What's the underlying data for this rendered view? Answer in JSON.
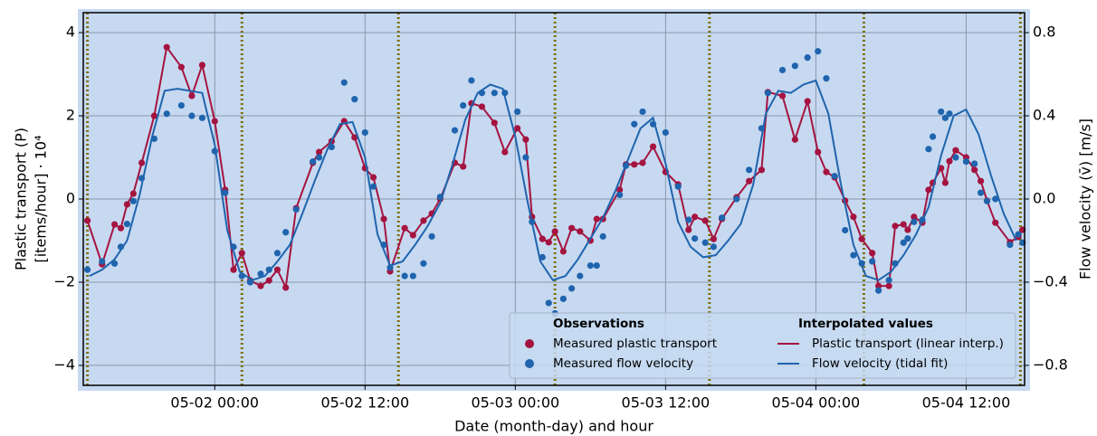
{
  "chart_data": {
    "type": "line",
    "x_label": "Date (month-day) and hour",
    "y_label": [
      "Plastic transport (P)",
      "[items/hour] · 10⁴"
    ],
    "y2_label": "Flow velocity (v̄) [m/s]",
    "xlim": [
      "05-01 13:30",
      "05-04 16:40"
    ],
    "xticks": [
      "05-02 00:00",
      "05-02 12:00",
      "05-03 00:00",
      "05-03 12:00",
      "05-04 00:00",
      "05-04 12:00"
    ],
    "ylim": [
      -4.48,
      4.48
    ],
    "yticks": [
      {
        "value": -4,
        "label": "−4"
      },
      {
        "value": -2,
        "label": "−2"
      },
      0,
      2,
      4
    ],
    "y2lim": [
      -0.896,
      0.896
    ],
    "y2ticks": [
      {
        "value": -0.8,
        "label": "−0.8"
      },
      {
        "value": -0.4,
        "label": "−0.4"
      },
      {
        "value": 0,
        "label": "0.0"
      },
      0.4,
      0.8
    ],
    "grid": true,
    "legend": "lower right",
    "legend_titles": [
      "Observations",
      "Interpolated values"
    ],
    "vlines": {
      "color": "#7f6e00",
      "x": [
        "05-01 13:50",
        "05-02 02:10",
        "05-02 14:40",
        "05-03 03:10",
        "05-03 15:30",
        "05-04 03:50",
        "05-04 16:20"
      ]
    },
    "x": [
      "05-01 13:50",
      "05-01 15:00",
      "05-01 16:00",
      "05-01 16:30",
      "05-01 17:00",
      "05-01 17:30",
      "05-01 18:10",
      "05-01 19:10",
      "05-01 20:10",
      "05-01 21:20",
      "05-01 22:10",
      "05-01 23:00",
      "05-02 00:00",
      "05-02 00:50",
      "05-02 01:30",
      "05-02 02:10",
      "05-02 02:50",
      "05-02 03:40",
      "05-02 04:20",
      "05-02 05:00",
      "05-02 05:40",
      "05-02 06:30",
      "05-02 07:50",
      "05-02 08:20",
      "05-02 09:20",
      "05-02 10:20",
      "05-02 11:10",
      "05-02 12:00",
      "05-02 12:40",
      "05-02 13:30",
      "05-02 14:00",
      "05-02 15:10",
      "05-02 15:50",
      "05-02 16:40",
      "05-02 17:20",
      "05-02 18:00",
      "05-02 19:10",
      "05-02 19:50",
      "05-02 20:30",
      "05-02 21:20",
      "05-02 22:20",
      "05-02 23:10",
      "05-03 00:10",
      "05-03 00:50",
      "05-03 01:20",
      "05-03 02:10",
      "05-03 02:40",
      "05-03 03:10",
      "05-03 03:50",
      "05-03 04:30",
      "05-03 05:10",
      "05-03 06:00",
      "05-03 06:30",
      "05-03 07:00",
      "05-03 08:20",
      "05-03 08:50",
      "05-03 09:30",
      "05-03 10:10",
      "05-03 11:00",
      "05-03 12:00",
      "05-03 13:00",
      "05-03 13:50",
      "05-03 14:20",
      "05-03 15:10",
      "05-03 15:50",
      "05-03 16:30",
      "05-03 17:40",
      "05-03 18:40",
      "05-03 19:40",
      "05-03 20:10",
      "05-03 21:20",
      "05-03 22:20",
      "05-03 23:20",
      "05-04 00:10",
      "05-04 00:50",
      "05-04 01:30",
      "05-04 02:20",
      "05-04 03:00",
      "05-04 03:40",
      "05-04 04:30",
      "05-04 05:00",
      "05-04 05:50",
      "05-04 06:20",
      "05-04 07:00",
      "05-04 07:20",
      "05-04 07:50",
      "05-04 08:30",
      "05-04 09:00",
      "05-04 09:20",
      "05-04 10:00",
      "05-04 10:20",
      "05-04 10:40",
      "05-04 11:10",
      "05-04 12:00",
      "05-04 12:40",
      "05-04 13:10",
      "05-04 13:40",
      "05-04 14:20",
      "05-04 15:30",
      "05-04 16:10",
      "05-04 16:30"
    ],
    "series": [
      {
        "name": "Measured plastic transport",
        "line_name": "Plastic transport (linear interp.)",
        "style": "markers+line",
        "color": "#a51440",
        "values": [
          -0.52,
          -1.57,
          -0.61,
          -0.7,
          -0.13,
          0.13,
          0.87,
          2.0,
          3.65,
          3.17,
          2.48,
          3.22,
          1.87,
          0.22,
          -1.7,
          -1.3,
          -1.96,
          -2.09,
          -1.96,
          -1.7,
          -2.13,
          -0.22,
          0.87,
          1.13,
          1.39,
          1.87,
          1.48,
          0.74,
          0.52,
          -0.48,
          -1.74,
          -0.7,
          -0.87,
          -0.52,
          -0.35,
          0.0,
          0.87,
          0.78,
          2.3,
          2.22,
          1.83,
          1.13,
          1.7,
          1.43,
          -0.43,
          -0.96,
          -1.04,
          -0.78,
          -1.26,
          -0.7,
          -0.78,
          -1.0,
          -0.48,
          -0.48,
          0.22,
          0.83,
          0.83,
          0.87,
          1.26,
          0.65,
          0.35,
          -0.74,
          -0.43,
          -0.52,
          -0.96,
          -0.48,
          0.04,
          0.43,
          0.7,
          2.57,
          2.48,
          1.43,
          2.35,
          1.13,
          0.65,
          0.52,
          -0.04,
          -0.43,
          -0.96,
          -1.3,
          -2.09,
          -2.09,
          -0.65,
          -0.61,
          -0.74,
          -0.43,
          -0.57,
          0.22,
          0.39,
          0.74,
          0.39,
          0.91,
          1.17,
          1.0,
          0.7,
          0.43,
          -0.04,
          -0.57,
          -1.04,
          -0.91,
          -0.74
        ]
      },
      {
        "name": "Measured flow velocity",
        "style": "markers",
        "axis": "y2",
        "color": "#1f64ad",
        "values": [
          -0.34,
          -0.3,
          -0.31,
          -0.23,
          -0.12,
          -0.01,
          0.1,
          0.29,
          0.41,
          0.45,
          0.4,
          0.39,
          0.23,
          0.03,
          -0.23,
          -0.37,
          -0.4,
          -0.36,
          -0.34,
          -0.26,
          -0.16,
          -0.05,
          0.18,
          0.2,
          0.25,
          0.56,
          0.48,
          0.32,
          0.06,
          -0.22,
          -0.33,
          -0.37,
          -0.37,
          -0.31,
          -0.18,
          0.01,
          0.33,
          0.45,
          0.57,
          0.51,
          0.51,
          0.51,
          0.42,
          0.2,
          -0.11,
          -0.28,
          -0.5,
          -0.55,
          -0.48,
          -0.43,
          -0.37,
          -0.32,
          -0.32,
          -0.18,
          0.02,
          0.16,
          0.36,
          0.42,
          0.36,
          0.32,
          0.06,
          -0.1,
          -0.19,
          -0.21,
          -0.23,
          -0.09,
          0.0,
          0.14,
          0.34,
          0.51,
          0.62,
          0.64,
          0.68,
          0.71,
          0.58,
          0.11,
          -0.15,
          -0.27,
          -0.31,
          -0.3,
          -0.44,
          -0.39,
          -0.31,
          -0.21,
          -0.19,
          -0.11,
          -0.1,
          0.24,
          0.3,
          0.42,
          0.39,
          0.41,
          0.2,
          0.18,
          0.17,
          0.03,
          -0.01,
          0.0,
          -0.22,
          -0.17,
          -0.21
        ]
      },
      {
        "name": "Flow velocity (tidal fit)",
        "style": "line",
        "axis": "y2",
        "color": "#1f64ad",
        "x": [
          "05-01 14:00",
          "05-01 15:00",
          "05-01 16:00",
          "05-01 17:00",
          "05-01 18:00",
          "05-01 19:00",
          "05-01 20:00",
          "05-01 21:00",
          "05-01 22:00",
          "05-01 23:00",
          "05-02 00:00",
          "05-02 01:00",
          "05-02 02:00",
          "05-02 03:00",
          "05-02 04:00",
          "05-02 05:00",
          "05-02 06:00",
          "05-02 07:00",
          "05-02 08:00",
          "05-02 09:00",
          "05-02 10:00",
          "05-02 11:00",
          "05-02 12:00",
          "05-02 13:00",
          "05-02 14:00",
          "05-02 15:00",
          "05-02 16:00",
          "05-02 17:00",
          "05-02 18:00",
          "05-02 19:00",
          "05-02 20:00",
          "05-02 21:00",
          "05-02 22:00",
          "05-02 23:00",
          "05-03 00:00",
          "05-03 01:00",
          "05-03 02:00",
          "05-03 03:00",
          "05-03 04:00",
          "05-03 05:00",
          "05-03 06:00",
          "05-03 07:00",
          "05-03 08:00",
          "05-03 09:00",
          "05-03 10:00",
          "05-03 11:00",
          "05-03 12:00",
          "05-03 13:00",
          "05-03 14:00",
          "05-03 15:00",
          "05-03 16:00",
          "05-03 17:00",
          "05-03 18:00",
          "05-03 19:00",
          "05-03 20:00",
          "05-03 21:00",
          "05-03 22:00",
          "05-03 23:00",
          "05-04 00:00",
          "05-04 01:00",
          "05-04 02:00",
          "05-04 03:00",
          "05-04 04:00",
          "05-04 05:00",
          "05-04 06:00",
          "05-04 07:00",
          "05-04 08:00",
          "05-04 09:00",
          "05-04 10:00",
          "05-04 11:00",
          "05-04 12:00",
          "05-04 13:00",
          "05-04 14:00",
          "05-04 15:00",
          "05-04 16:00"
        ],
        "values": [
          -0.37,
          -0.34,
          -0.29,
          -0.2,
          0.02,
          0.3,
          0.52,
          0.53,
          0.52,
          0.51,
          0.26,
          -0.15,
          -0.35,
          -0.39,
          -0.37,
          -0.3,
          -0.22,
          -0.07,
          0.09,
          0.24,
          0.36,
          0.37,
          0.2,
          -0.17,
          -0.32,
          -0.3,
          -0.22,
          -0.13,
          -0.02,
          0.17,
          0.38,
          0.51,
          0.55,
          0.53,
          0.3,
          -0.02,
          -0.3,
          -0.39,
          -0.37,
          -0.29,
          -0.19,
          -0.09,
          0.04,
          0.19,
          0.34,
          0.39,
          0.17,
          -0.11,
          -0.23,
          -0.28,
          -0.27,
          -0.2,
          -0.12,
          0.07,
          0.41,
          0.52,
          0.51,
          0.55,
          0.57,
          0.41,
          0.07,
          -0.22,
          -0.37,
          -0.39,
          -0.35,
          -0.27,
          -0.17,
          -0.04,
          0.21,
          0.4,
          0.43,
          0.31,
          0.11,
          -0.07,
          -0.2
        ]
      }
    ]
  }
}
